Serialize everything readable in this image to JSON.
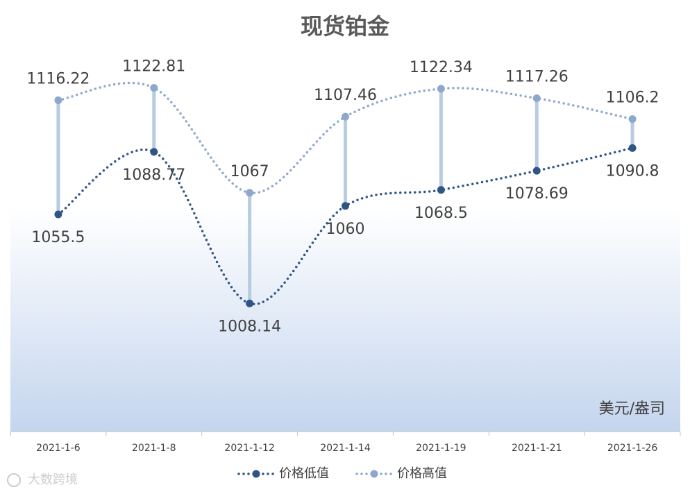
{
  "chart_data": {
    "type": "line",
    "title": "现货铂金",
    "categories": [
      "2021-1-6",
      "2021-1-8",
      "2021-1-12",
      "2021-1-14",
      "2021-1-19",
      "2021-1-21",
      "2021-1-26"
    ],
    "series": [
      {
        "name": "价格低值",
        "color": "#2f5586",
        "values": [
          1055.5,
          1088.77,
          1008.14,
          1060,
          1068.5,
          1078.69,
          1090.8
        ]
      },
      {
        "name": "价格高值",
        "color": "#8ea8cc",
        "values": [
          1116.22,
          1122.81,
          1067,
          1107.46,
          1122.34,
          1117.26,
          1106.2
        ]
      }
    ],
    "ylim": [
      940,
      1140
    ],
    "high_low_lines": true,
    "legend": "bottom",
    "annotation": "美元/盎司",
    "watermark": "大数跨境"
  }
}
